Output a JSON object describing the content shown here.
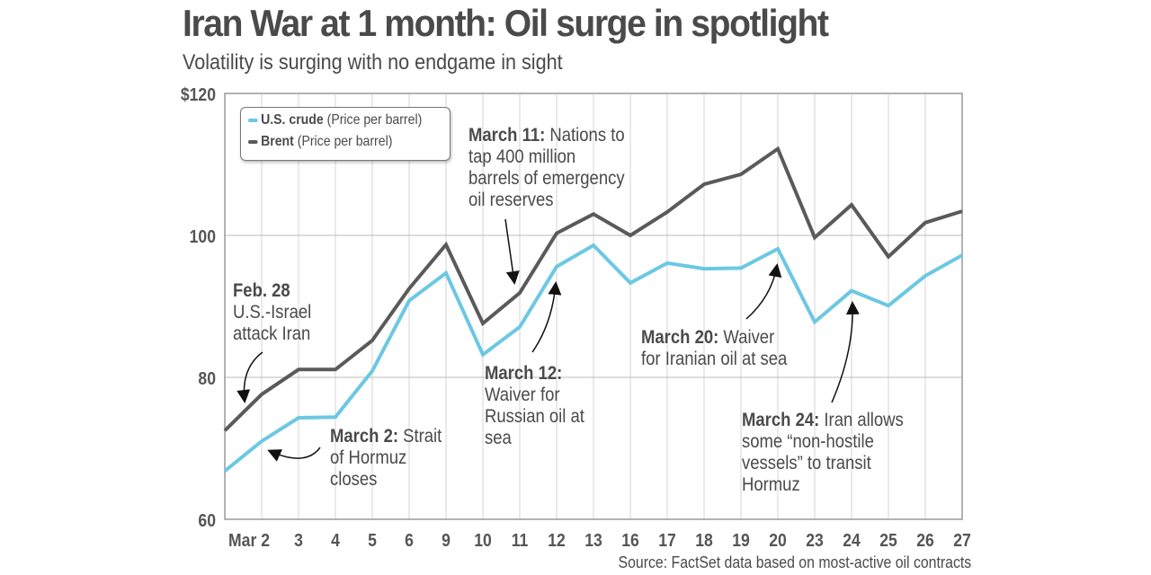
{
  "header": {
    "title": "Iran War at 1 month: Oil surge in spotlight",
    "subtitle": "Volatility is surging with no endgame in sight"
  },
  "source": "Source: FactSet data based on most-active oil contracts",
  "chart_data": {
    "type": "line",
    "title": "Iran War at 1 month: Oil surge in spotlight",
    "subtitle": "Volatility is surging with no endgame in sight",
    "categories": [
      "",
      "Mar 2",
      "3",
      "4",
      "5",
      "6",
      "9",
      "10",
      "11",
      "12",
      "13",
      "16",
      "17",
      "18",
      "19",
      "20",
      "23",
      "24",
      "25",
      "26",
      "27"
    ],
    "ylim": [
      60,
      120
    ],
    "yticks": [
      60,
      80,
      100,
      120
    ],
    "ytick_labels": [
      "60",
      "80",
      "100",
      "$120"
    ],
    "grid": true,
    "legend_position": "top-left",
    "series": [
      {
        "name": "U.S. crude",
        "name_suffix": "(Price per barrel)",
        "color": "#6cc8e2",
        "values": [
          66.8,
          71.0,
          74.3,
          74.4,
          80.9,
          90.8,
          94.7,
          83.2,
          87.1,
          95.6,
          98.6,
          93.3,
          96.1,
          95.3,
          95.4,
          98.1,
          87.8,
          92.2,
          90.1,
          94.3,
          97.2
        ]
      },
      {
        "name": "Brent",
        "name_suffix": "(Price per barrel)",
        "color": "#5a5a5a",
        "values": [
          72.5,
          77.6,
          81.1,
          81.1,
          85.2,
          92.5,
          98.7,
          87.6,
          91.9,
          100.3,
          103.0,
          100.0,
          103.3,
          107.2,
          108.6,
          112.2,
          99.7,
          104.3,
          97.0,
          101.8,
          103.4
        ]
      }
    ],
    "annotations": [
      {
        "bold": "Feb. 28",
        "lines": [
          "U.S.-Israel",
          "attack Iran"
        ]
      },
      {
        "bold": "March 2:",
        "text": "Strait",
        "lines": [
          "of Hormuz",
          "closes"
        ]
      },
      {
        "bold": "March 11:",
        "text": "Nations to",
        "lines": [
          "tap 400 million",
          "barrels of emergency",
          "oil reserves"
        ]
      },
      {
        "bold": "March 12:",
        "text": "",
        "lines": [
          "Waiver for",
          "Russian oil at",
          "sea"
        ]
      },
      {
        "bold": "March 20:",
        "text": "Waiver",
        "lines": [
          "for Iranian oil at sea"
        ]
      },
      {
        "bold": "March 24:",
        "text": "Iran allows",
        "lines": [
          "some “non-hostile",
          "vessels” to transit",
          "Hormuz"
        ]
      }
    ]
  }
}
